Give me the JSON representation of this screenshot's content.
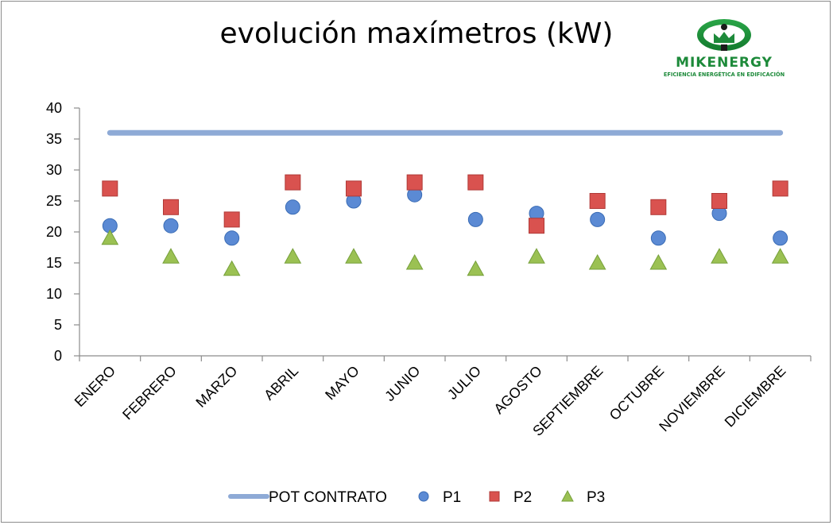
{
  "logo": {
    "brand": "MIKENERGY",
    "tagline": "EFICIENCIA ENERGÉTICA EN EDIFICACIÓN"
  },
  "colors": {
    "pot_contrato": "#8eaad6",
    "p1": "#5b8ad4",
    "p2": "#d9524f",
    "p3": "#9bc153",
    "logo_green": "#1d8a3a",
    "logo_dark": "#1a1a1a",
    "axis": "#8c8c8c"
  },
  "chart_data": {
    "type": "scatter",
    "title": "evolución maxímetros (kW)",
    "xlabel": "",
    "ylabel": "",
    "ylim": [
      0,
      40
    ],
    "yticks": [
      0,
      5,
      10,
      15,
      20,
      25,
      30,
      35,
      40
    ],
    "grid": false,
    "legend_position": "bottom",
    "categories": [
      "ENERO",
      "FEBRERO",
      "MARZO",
      "ABRIL",
      "MAYO",
      "JUNIO",
      "JULIO",
      "AGOSTO",
      "SEPTIEMBRE",
      "OCTUBRE",
      "NOVIEMBRE",
      "DICIEMBRE"
    ],
    "series": [
      {
        "name": "POT CONTRATO",
        "type": "line",
        "values": [
          36,
          36,
          36,
          36,
          36,
          36,
          36,
          36,
          36,
          36,
          36,
          36
        ]
      },
      {
        "name": "P1",
        "type": "scatter",
        "marker": "circle",
        "values": [
          21,
          21,
          19,
          24,
          25,
          26,
          22,
          23,
          22,
          19,
          23,
          19
        ]
      },
      {
        "name": "P2",
        "type": "scatter",
        "marker": "square",
        "values": [
          27,
          24,
          22,
          28,
          27,
          28,
          28,
          21,
          25,
          24,
          25,
          27
        ]
      },
      {
        "name": "P3",
        "type": "scatter",
        "marker": "triangle",
        "values": [
          19,
          16,
          14,
          16,
          16,
          15,
          14,
          16,
          15,
          15,
          16,
          16
        ]
      }
    ]
  }
}
